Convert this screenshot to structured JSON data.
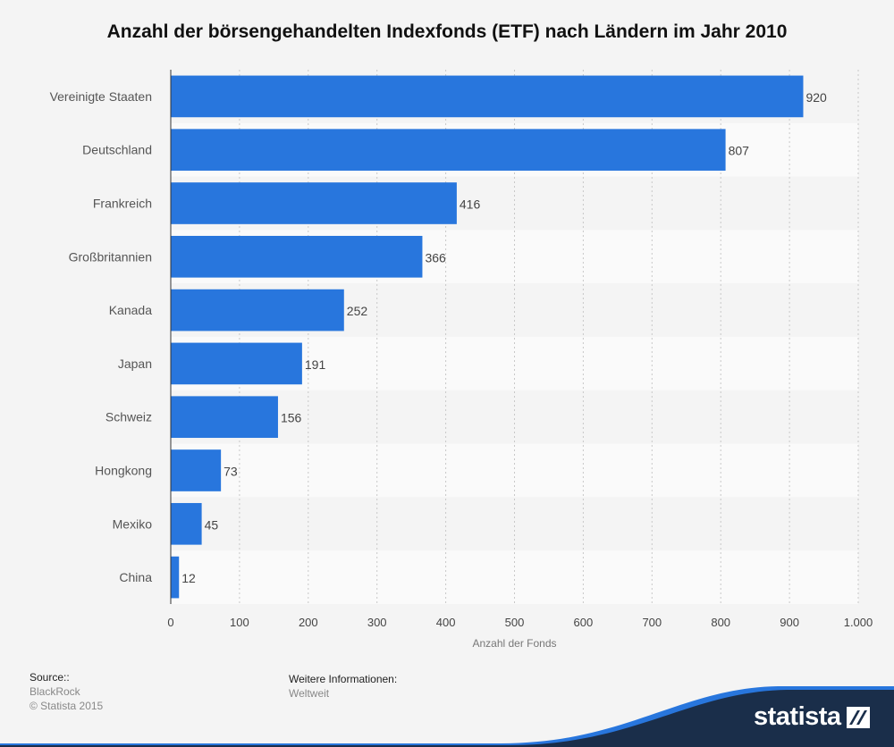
{
  "chart_data": {
    "type": "bar",
    "orientation": "horizontal",
    "title": "Anzahl der börsengehandelten Indexfonds (ETF) nach Ländern im Jahr 2010",
    "categories": [
      "Vereinigte Staaten",
      "Deutschland",
      "Frankreich",
      "Großbritannien",
      "Kanada",
      "Japan",
      "Schweiz",
      "Hongkong",
      "Mexiko",
      "China"
    ],
    "values": [
      920,
      807,
      416,
      366,
      252,
      191,
      156,
      73,
      45,
      12
    ],
    "xlabel": "Anzahl der Fonds",
    "ylabel": "",
    "xlim": [
      0,
      1000
    ],
    "ticks": [
      0,
      100,
      200,
      300,
      400,
      500,
      600,
      700,
      800,
      900,
      1000
    ],
    "tick_labels": [
      "0",
      "100",
      "200",
      "300",
      "400",
      "500",
      "600",
      "700",
      "800",
      "900",
      "1.000"
    ],
    "grid": true,
    "bar_color": "#2876dd"
  },
  "footer": {
    "source_heading": "Source::",
    "source_name": "BlackRock",
    "copyright": "© Statista 2015",
    "info_heading": "Weitere Informationen:",
    "info_value": "Weltweit"
  },
  "brand": {
    "logo_text": "statista",
    "logo_icon": "statista-logo-icon",
    "wave_color": "#1a2e4a",
    "accent_color": "#2876dd"
  }
}
